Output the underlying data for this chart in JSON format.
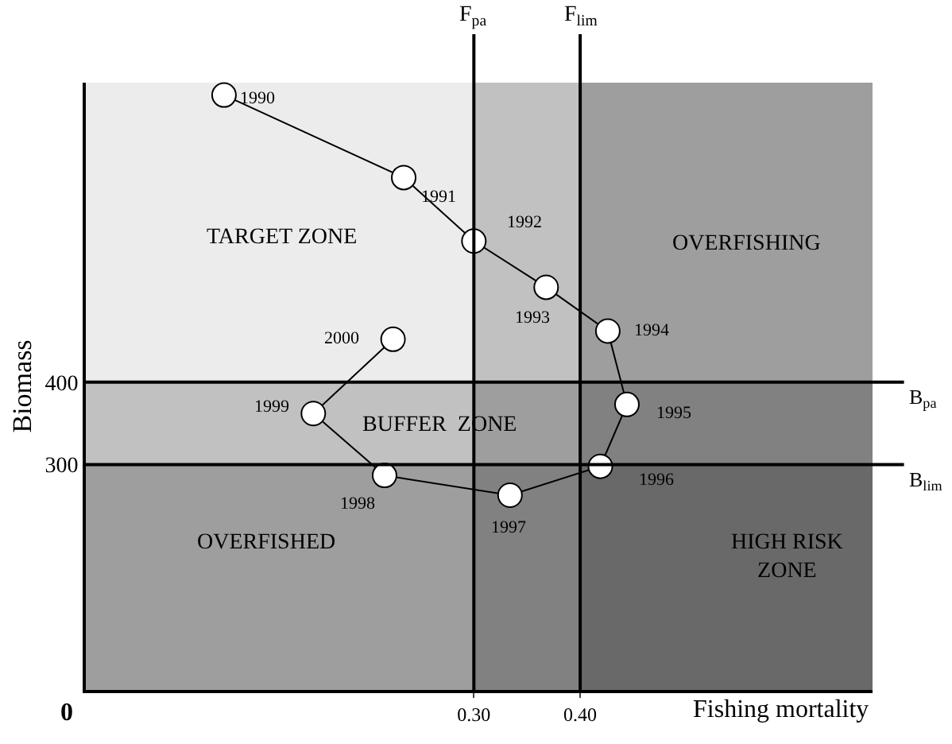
{
  "chart_data": {
    "type": "line",
    "xlabel": "Fishing mortality",
    "ylabel": "Biomass",
    "x": [
      0.065,
      0.234,
      0.3,
      0.368,
      0.426,
      0.444,
      0.419,
      0.334,
      0.216,
      0.149,
      0.224
    ],
    "series": [
      {
        "color": "#000000",
        "values": [
          748,
          648,
          571,
          515,
          462,
          373,
          298,
          263,
          287,
          362,
          452
        ]
      }
    ],
    "marker": "circle",
    "line_style": "solid",
    "xlim": [
      -0.065,
      0.675
    ],
    "xticks": [
      {
        "value": 0.3,
        "label": "0.30"
      },
      {
        "value": 0.4,
        "label": "0.40"
      }
    ],
    "ylim": [
      27,
      763
    ],
    "yticks": [
      300,
      400
    ],
    "ref_lines": [
      {
        "axis": "x",
        "value": 0.3,
        "label": "F$_{pa}$",
        "color": "#000000"
      },
      {
        "axis": "x",
        "value": 0.4,
        "label": "F$_{lim}$",
        "color": "#000000"
      },
      {
        "axis": "y",
        "value": 400,
        "label": "B$_{pa}$",
        "color": "#000000"
      },
      {
        "axis": "y",
        "value": 300,
        "label": "B$_{lim}$",
        "color": "#000000"
      }
    ],
    "bands": [
      {
        "axis": "x",
        "from": 0.3,
        "to": 0.675,
        "color": "#000000"
      },
      {
        "axis": "x",
        "from": 0.4,
        "to": 0.675,
        "color": "#000000"
      },
      {
        "axis": "y",
        "from": 27,
        "to": 400,
        "color": "#000000"
      },
      {
        "axis": "y",
        "from": 27,
        "to": 300,
        "color": "#000000"
      }
    ],
    "annotations": [
      "TARGET ZONE",
      "OVERFISHING",
      "BUFFER  ZONE",
      "OVERFISHED",
      "HIGH RISK ZONE",
      "0",
      {
        "text": "1990",
        "x": 0.065,
        "y": 748
      },
      {
        "text": "1991",
        "x": 0.234,
        "y": 648
      },
      {
        "text": "1992",
        "x": 0.3,
        "y": 571
      },
      {
        "text": "1993",
        "x": 0.368,
        "y": 515
      },
      {
        "text": "1994",
        "x": 0.426,
        "y": 462
      },
      {
        "text": "1995",
        "x": 0.444,
        "y": 373
      },
      {
        "text": "1996",
        "x": 0.419,
        "y": 298
      },
      {
        "text": "1997",
        "x": 0.334,
        "y": 263
      },
      {
        "text": "1998",
        "x": 0.216,
        "y": 287
      },
      {
        "text": "1999",
        "x": 0.149,
        "y": 362
      },
      {
        "text": "2000",
        "x": 0.224,
        "y": 452
      }
    ],
    "legend": false
  }
}
